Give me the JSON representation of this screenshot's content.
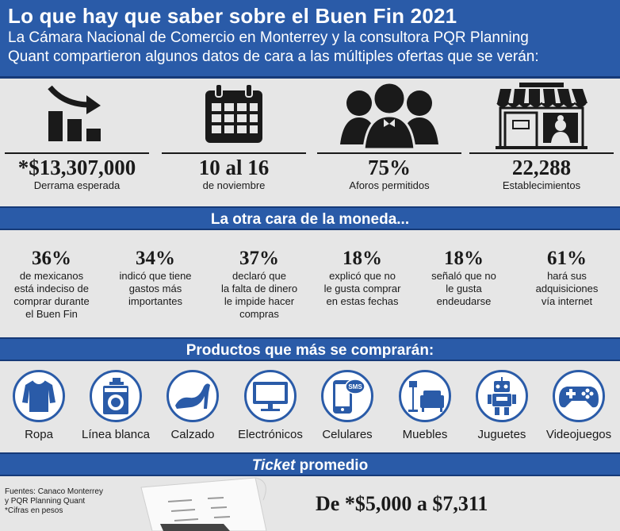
{
  "header": {
    "title": "Lo que hay que saber sobre el Buen Fin 2021",
    "subtitle_line1": "La Cámara Nacional de Comercio en Monterrey y la consultora PQR Planning",
    "subtitle_line2": "Quant compartieron algunos datos de cara a las múltiples ofertas que se verán:"
  },
  "stats": [
    {
      "value": "*$13,307,000",
      "label": "Derrama esperada",
      "icon": "chart-down-icon"
    },
    {
      "value": "10 al 16",
      "label": "de noviembre",
      "icon": "calendar-icon"
    },
    {
      "value": "75%",
      "label": "Aforos permitidos",
      "icon": "people-icon"
    },
    {
      "value": "22,288",
      "label": "Establecimientos",
      "icon": "store-icon"
    }
  ],
  "section2": {
    "title": "La otra cara de la moneda..."
  },
  "percentages": [
    {
      "num": "36%",
      "lines": [
        "de mexicanos",
        "está indeciso de",
        "comprar durante",
        "el Buen Fin"
      ]
    },
    {
      "num": "34%",
      "lines": [
        "indicó que tiene",
        "gastos más",
        "importantes"
      ]
    },
    {
      "num": "37%",
      "lines": [
        "declaró que",
        "la falta de dinero",
        "le impide hacer",
        "compras"
      ]
    },
    {
      "num": "18%",
      "lines": [
        "explicó que no",
        "le gusta comprar",
        "en estas fechas"
      ]
    },
    {
      "num": "18%",
      "lines": [
        "señaló que no",
        "le gusta",
        "endeudarse"
      ]
    },
    {
      "num": "61%",
      "lines": [
        "hará sus",
        "adquisiciones",
        "vía internet"
      ]
    }
  ],
  "section3": {
    "title": "Productos que más se comprarán:"
  },
  "products": [
    {
      "label": "Ropa",
      "icon": "shirt-icon"
    },
    {
      "label": "Línea blanca",
      "icon": "washing-machine-icon"
    },
    {
      "label": "Calzado",
      "icon": "high-heel-icon"
    },
    {
      "label": "Electrónicos",
      "icon": "monitor-icon"
    },
    {
      "label": "Celulares",
      "icon": "phone-icon",
      "badge": "SMS"
    },
    {
      "label": "Muebles",
      "icon": "armchair-icon"
    },
    {
      "label": "Juguetes",
      "icon": "robot-icon"
    },
    {
      "label": "Videojuegos",
      "icon": "gamepad-icon"
    }
  ],
  "ticket": {
    "title_italic": "Ticket",
    "title_rest": " promedio",
    "value": "De *$5,000 a $7,311",
    "sources": [
      "Fuentes: Canaco Monterrey",
      "y PQR Planning Quant",
      "*Cifras en pesos"
    ]
  },
  "colors": {
    "accent": "#2a5ba8",
    "accent_dark": "#163a78",
    "background": "#e6e6e6"
  }
}
